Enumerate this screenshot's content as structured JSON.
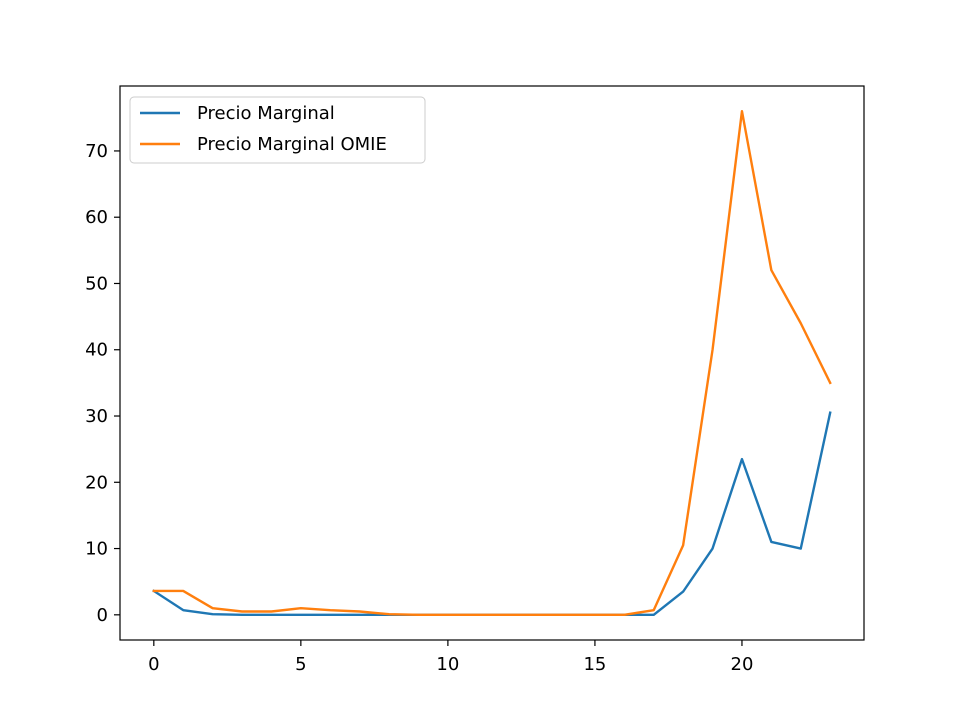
{
  "chart_data": {
    "type": "line",
    "title": "",
    "xlabel": "",
    "ylabel": "",
    "x": [
      0,
      1,
      2,
      3,
      4,
      5,
      6,
      7,
      8,
      9,
      10,
      11,
      12,
      13,
      14,
      15,
      16,
      17,
      18,
      19,
      20,
      21,
      22,
      23
    ],
    "series": [
      {
        "name": "Precio Marginal",
        "color": "#1f77b4",
        "values": [
          3.6,
          0.7,
          0.1,
          0.0,
          0.0,
          0.0,
          0.0,
          0.0,
          0.0,
          0.0,
          0.0,
          0.0,
          0.0,
          0.0,
          0.0,
          0.0,
          0.0,
          0.0,
          3.5,
          10.0,
          23.5,
          11.0,
          10.0,
          30.5
        ]
      },
      {
        "name": "Precio Marginal OMIE",
        "color": "#ff7f0e",
        "values": [
          3.6,
          3.6,
          1.0,
          0.5,
          0.5,
          1.0,
          0.7,
          0.5,
          0.1,
          0.0,
          0.0,
          0.0,
          0.0,
          0.0,
          0.0,
          0.0,
          0.0,
          0.7,
          10.5,
          40.0,
          76.0,
          52.0,
          44.0,
          35.0
        ]
      }
    ],
    "xlim": [
      -1.15,
      24.15
    ],
    "ylim": [
      -3.8,
      79.8
    ],
    "xticks": [
      0,
      5,
      10,
      15,
      20
    ],
    "yticks": [
      0,
      10,
      20,
      30,
      40,
      50,
      60,
      70
    ],
    "grid": false,
    "legend_position": "top-left"
  }
}
